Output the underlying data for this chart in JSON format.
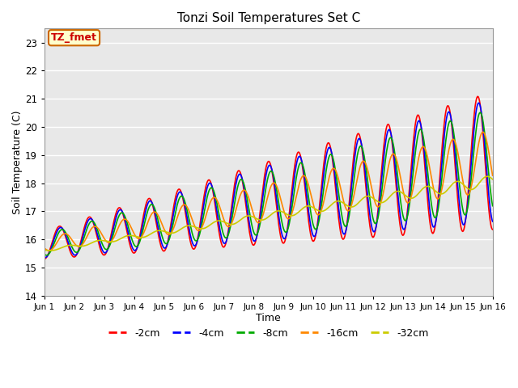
{
  "title": "Tonzi Soil Temperatures Set C",
  "xlabel": "Time",
  "ylabel": "Soil Temperature (C)",
  "ylim": [
    14.0,
    23.5
  ],
  "yticks": [
    14.0,
    15.0,
    16.0,
    17.0,
    18.0,
    19.0,
    20.0,
    21.0,
    22.0,
    23.0
  ],
  "annotation_text": "TZ_fmet",
  "annotation_color": "#cc0000",
  "annotation_bg": "#ffffcc",
  "annotation_border": "#cc6600",
  "fig_bg": "#ffffff",
  "plot_bg": "#e8e8e8",
  "grid_color": "#ffffff",
  "line_colors": [
    "#ff0000",
    "#0000ff",
    "#00aa00",
    "#ff8800",
    "#cccc00"
  ],
  "line_labels": [
    "-2cm",
    "-4cm",
    "-8cm",
    "-16cm",
    "-32cm"
  ],
  "line_width": 1.2,
  "n_points": 720,
  "x_start": 1,
  "x_end": 16,
  "xtick_positions": [
    1,
    2,
    3,
    4,
    5,
    6,
    7,
    8,
    9,
    10,
    11,
    12,
    13,
    14,
    15,
    16
  ],
  "xtick_labels": [
    "Jun 1",
    "Jun 2",
    "Jun 3",
    "Jun 4",
    "Jun 5",
    "Jun 6",
    "Jun 7",
    "Jun 8",
    "Jun 9",
    "Jun 10",
    "Jun 11",
    "Jun 12",
    "Jun 13",
    "Jun 14",
    "Jun 15",
    "Jun 16"
  ]
}
